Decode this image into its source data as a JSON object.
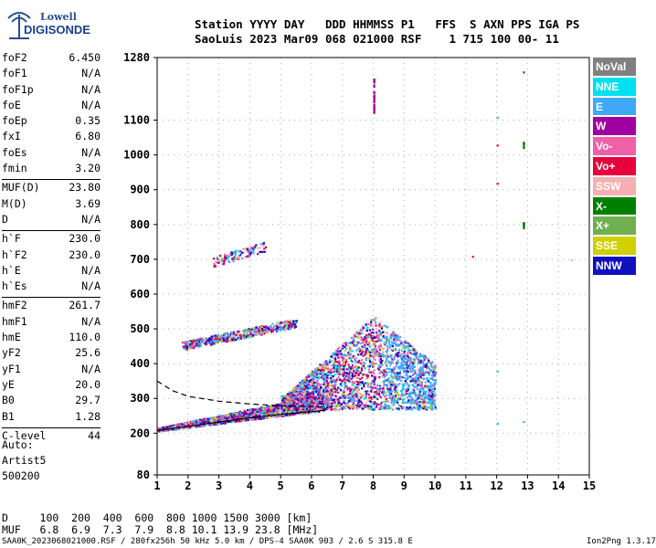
{
  "logo": {
    "line1": "Lowell",
    "line2": "DIGISONDE"
  },
  "header": {
    "labels": "Station YYYY DAY   DDD HHMMSS P1   FFS  S AXN PPS IGA PS",
    "values": "SaoLuis 2023 Mar09 068 021000 RSF    1 715 100 00- 11"
  },
  "params": [
    [
      {
        "name": "foF2",
        "value": "6.450"
      },
      {
        "name": "foF1",
        "value": "N/A"
      },
      {
        "name": "foF1p",
        "value": "N/A"
      },
      {
        "name": "foE",
        "value": "N/A"
      },
      {
        "name": "foEp",
        "value": "0.35"
      },
      {
        "name": "fxI",
        "value": "6.80"
      },
      {
        "name": "foEs",
        "value": "N/A"
      },
      {
        "name": "fmin",
        "value": "3.20"
      }
    ],
    [
      {
        "name": "MUF(D)",
        "value": "23.80"
      },
      {
        "name": "M(D)",
        "value": "3.69"
      },
      {
        "name": "D",
        "value": "N/A"
      }
    ],
    [
      {
        "name": "h`F",
        "value": "230.0"
      },
      {
        "name": "h`F2",
        "value": "230.0"
      },
      {
        "name": "h`E",
        "value": "N/A"
      },
      {
        "name": "h`Es",
        "value": "N/A"
      }
    ],
    [
      {
        "name": "hmF2",
        "value": "261.7"
      },
      {
        "name": "hmF1",
        "value": "N/A"
      },
      {
        "name": "hmE",
        "value": "110.0"
      },
      {
        "name": "yF2",
        "value": "25.6"
      },
      {
        "name": "yF1",
        "value": "N/A"
      },
      {
        "name": "yE",
        "value": "20.0"
      },
      {
        "name": "B0",
        "value": "29.7"
      },
      {
        "name": "B1",
        "value": "1.28"
      }
    ],
    [
      {
        "name": "C-level",
        "value": "44"
      }
    ]
  ],
  "autoscale": {
    "line1": "Auto:",
    "line2": "Artist5",
    "line3": "500200"
  },
  "legend": [
    {
      "label": "NoVal",
      "color": "#808080"
    },
    {
      "label": "NNE",
      "color": "#00e0f0"
    },
    {
      "label": "E",
      "color": "#3fa9f5"
    },
    {
      "label": "W",
      "color": "#a000a0"
    },
    {
      "label": "Vo-",
      "color": "#f060a8"
    },
    {
      "label": "Vo+",
      "color": "#e8003c"
    },
    {
      "label": "SSW",
      "color": "#f4b0b0"
    },
    {
      "label": "X-",
      "color": "#008000"
    },
    {
      "label": "X+",
      "color": "#70b050"
    },
    {
      "label": "SSE",
      "color": "#d0d000"
    },
    {
      "label": "NNW",
      "color": "#1010c0"
    }
  ],
  "footer": {
    "d_row": "D     100  200  400  600  800 1000 1500 3000 [km]",
    "muf_row": "MUF   6.8  6.9  7.3  7.9  8.8 10.1 13.9 23.8 [MHz]",
    "info": "SAA0K_2023068021000.RSF / 280fx256h 50 kHz 5.0 km / DPS-4 SAA0K 903 / 2.6 S 315.8 E",
    "version": "Ion2Png 1.3.17"
  },
  "chart_data": {
    "type": "scatter",
    "title": "",
    "xlabel": "",
    "ylabel": "",
    "xlim": [
      1,
      15
    ],
    "ylim": [
      80,
      1280
    ],
    "x_ticks": [
      1,
      2,
      3,
      4,
      5,
      6,
      7,
      8,
      9,
      10,
      11,
      12,
      13,
      14,
      15
    ],
    "y_ticks": [
      80,
      200,
      300,
      400,
      500,
      600,
      700,
      800,
      900,
      1000,
      1100,
      1280
    ],
    "grid": true,
    "legend_position": "right",
    "trace_solid": [
      [
        1,
        207
      ],
      [
        2,
        220
      ],
      [
        3,
        232
      ],
      [
        4,
        244
      ],
      [
        5,
        254
      ],
      [
        6,
        262
      ],
      [
        6.45,
        266
      ]
    ],
    "trace_dashed": [
      [
        1,
        350
      ],
      [
        1.5,
        322
      ],
      [
        2,
        306
      ],
      [
        3,
        292
      ],
      [
        4,
        284
      ],
      [
        5,
        279
      ],
      [
        6,
        276
      ],
      [
        6.45,
        275
      ]
    ],
    "clusters": [
      {
        "region": "F trace",
        "x": [
          1.0,
          6.5
        ],
        "y": [
          205,
          300
        ]
      },
      {
        "region": "second hop",
        "x": [
          1.7,
          5.5
        ],
        "y": [
          440,
          560
        ]
      },
      {
        "region": "upper echoes",
        "x": [
          2.8,
          4.5
        ],
        "y": [
          680,
          740
        ]
      },
      {
        "region": "spread F",
        "x": [
          5.0,
          10.0
        ],
        "y": [
          270,
          600
        ]
      },
      {
        "region": "vertical streak",
        "x": [
          7.9,
          8.1
        ],
        "y": [
          1120,
          1220
        ]
      }
    ]
  }
}
